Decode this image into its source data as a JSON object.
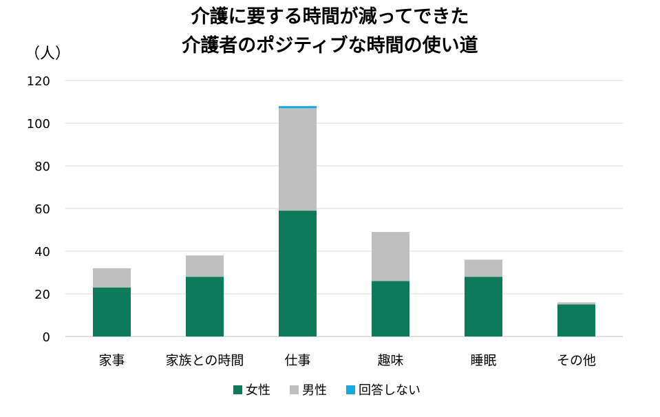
{
  "chart_data": {
    "type": "bar",
    "stacked": true,
    "title_lines": [
      "介護に要する時間が減ってできた",
      "介護者のポジティブな時間の使い道"
    ],
    "unit_label": "（人）",
    "categories": [
      "家事",
      "家族との時間",
      "仕事",
      "趣味",
      "睡眠",
      "その他"
    ],
    "series": [
      {
        "name": "女性",
        "color": "#0e7a5c",
        "values": [
          23,
          28,
          59,
          26,
          28,
          15
        ]
      },
      {
        "name": "男性",
        "color": "#bfbfbf",
        "values": [
          9,
          10,
          48,
          23,
          8,
          1
        ]
      },
      {
        "name": "回答しない",
        "color": "#17a9e1",
        "values": [
          0,
          0,
          1,
          0,
          0,
          0
        ]
      }
    ],
    "ylim": [
      0,
      120
    ],
    "yticks": [
      0,
      20,
      40,
      60,
      80,
      100,
      120
    ],
    "grid": true,
    "legend_position": "bottom"
  }
}
